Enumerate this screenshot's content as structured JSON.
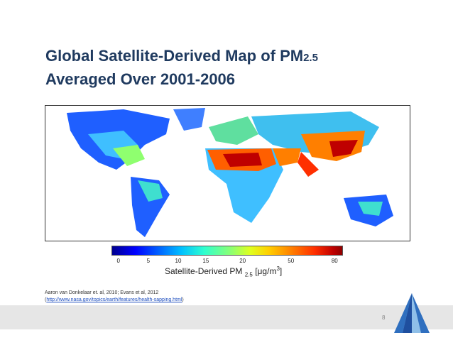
{
  "slide": {
    "title_main": "Global Satellite-Derived Map of PM",
    "title_sub": "2.5",
    "title_line2": "Averaged Over 2001-2006",
    "page_number": "8"
  },
  "map": {
    "description_icon": "world-map-pm25",
    "colors": {
      "low": "#0000ff",
      "mid": "#dfff1f",
      "high": "#bf0000"
    }
  },
  "colorbar": {
    "ticks": [
      "0",
      "5",
      "10",
      "15",
      "20",
      "50",
      "80"
    ],
    "label_main": "Satellite-Derived PM",
    "label_sub": "2.5",
    "label_unit_open": "[μg/m",
    "label_unit_sup": "3",
    "label_unit_close": "]"
  },
  "citation": {
    "line1": "Aaron van Donkelaar et. al, 2010; Evans et al, 2012",
    "line2_open": "(",
    "link": "http://www.nasa.gov/topics/earth/features/health-sapping.html",
    "line2_close": ")"
  }
}
